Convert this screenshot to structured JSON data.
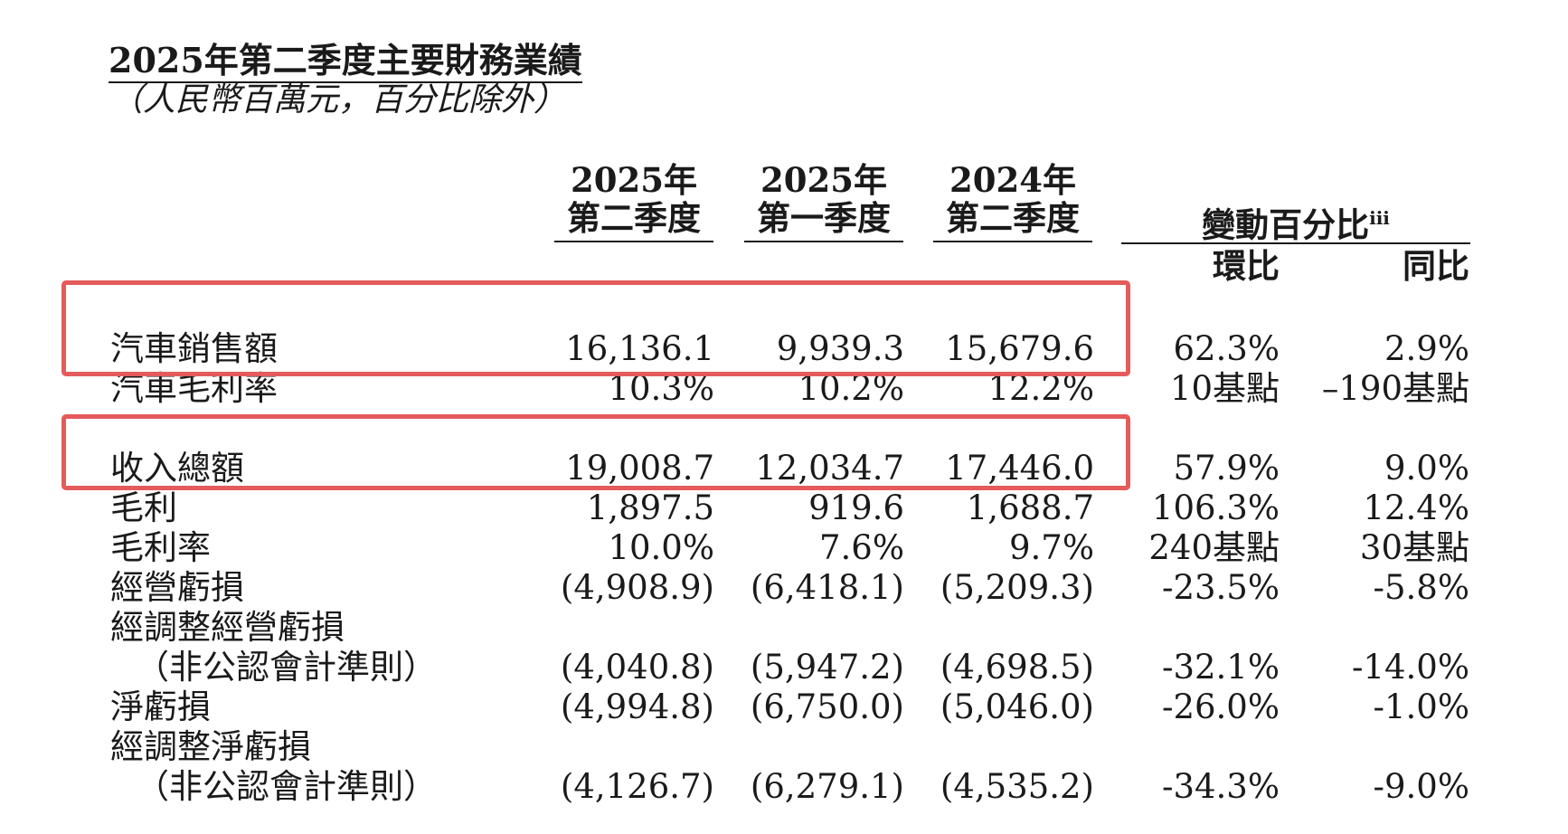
{
  "title": "2025年第二季度主要財務業績",
  "subtitle": "（人民幣百萬元，百分比除外）",
  "columns": [
    {
      "year": "2025年",
      "quarter": "第二季度"
    },
    {
      "year": "2025年",
      "quarter": "第一季度"
    },
    {
      "year": "2024年",
      "quarter": "第二季度"
    }
  ],
  "change": {
    "label": "變動百分比",
    "footnote": "iii",
    "qoq": "環比",
    "yoy": "同比"
  },
  "rows": [
    {
      "label": "汽車銷售額",
      "q2_2025": "16,136.1",
      "q1_2025": "9,939.3",
      "q2_2024": "15,679.6",
      "qoq": "62.3%",
      "yoy": "2.9%"
    },
    {
      "label": "汽車毛利率",
      "q2_2025": "10.3%",
      "q1_2025": "10.2%",
      "q2_2024": "12.2%",
      "qoq": "10基點",
      "yoy": "–190基點"
    },
    {
      "label": "收入總額",
      "q2_2025": "19,008.7",
      "q1_2025": "12,034.7",
      "q2_2024": "17,446.0",
      "qoq": "57.9%",
      "yoy": "9.0%"
    },
    {
      "label": "毛利",
      "q2_2025": "1,897.5",
      "q1_2025": "919.6",
      "q2_2024": "1,688.7",
      "qoq": "106.3%",
      "yoy": "12.4%"
    },
    {
      "label": "毛利率",
      "q2_2025": "10.0%",
      "q1_2025": "7.6%",
      "q2_2024": "9.7%",
      "qoq": "240基點",
      "yoy": "30基點"
    },
    {
      "label": "經營虧損",
      "q2_2025": "(4,908.9)",
      "q1_2025": "(6,418.1)",
      "q2_2024": "(5,209.3)",
      "qoq": "-23.5%",
      "yoy": "-5.8%"
    },
    {
      "label": "經調整經營虧損"
    },
    {
      "label": "（非公認會計準則）",
      "q2_2025": "(4,040.8)",
      "q1_2025": "(5,947.2)",
      "q2_2024": "(4,698.5)",
      "qoq": "-32.1%",
      "yoy": "-14.0%"
    },
    {
      "label": "淨虧損",
      "q2_2025": "(4,994.8)",
      "q1_2025": "(6,750.0)",
      "q2_2024": "(5,046.0)",
      "qoq": "-26.0%",
      "yoy": "-1.0%"
    },
    {
      "label": "經調整淨虧損"
    },
    {
      "label": "（非公認會計準則）",
      "q2_2025": "(4,126.7)",
      "q1_2025": "(6,279.1)",
      "q2_2024": "(4,535.2)",
      "qoq": "-34.3%",
      "yoy": "-9.0%"
    }
  ],
  "highlight_color": "#e55a5a"
}
